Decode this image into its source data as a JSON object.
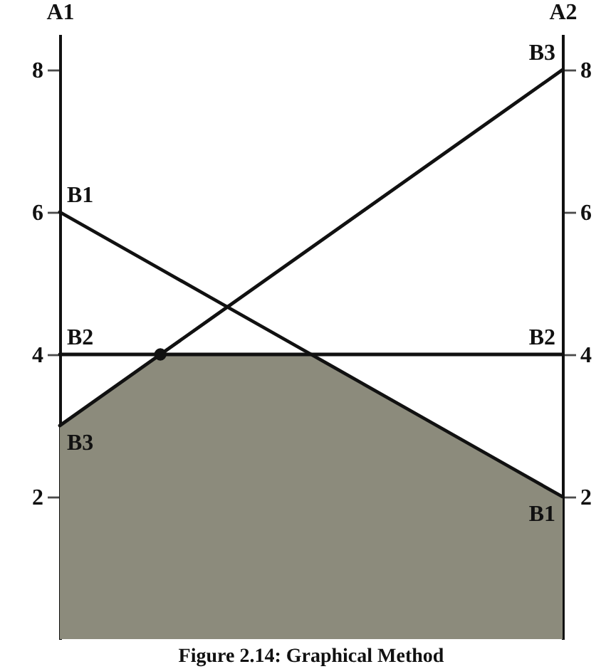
{
  "chart_data": {
    "type": "line",
    "title": "Figure 2.14: Graphical Method",
    "ylabel": "A1",
    "y2label": "A2",
    "ylim": [
      0,
      8.5
    ],
    "yticks": [
      2,
      4,
      6,
      8
    ],
    "y2lim": [
      0,
      8.5
    ],
    "y2ticks": [
      2,
      4,
      6,
      8
    ],
    "tick_labels": "y",
    "categories": [
      null,
      null,
      null,
      null,
      null,
      null,
      null,
      null,
      null,
      null,
      null
    ],
    "series": [
      {
        "type": "area",
        "color": "#8c8b7c",
        "values": [
          3,
          3.5,
          4,
          4,
          4,
          4,
          3.6,
          3.2,
          2.8,
          2.4,
          2
        ]
      },
      {
        "name": "B1",
        "color": "#111111",
        "values": [
          6,
          5.6,
          5.2,
          4.8,
          4.4,
          4,
          3.6,
          3.2,
          2.8,
          2.4,
          2
        ]
      },
      {
        "name": "B2",
        "color": "#111111",
        "values": [
          4,
          4,
          4,
          4,
          4,
          4,
          4,
          4,
          4,
          4,
          4
        ]
      },
      {
        "name": "B3",
        "color": "#111111",
        "values": [
          3,
          3.5,
          4,
          4.5,
          5,
          5.5,
          6,
          6.5,
          7,
          7.5,
          8
        ]
      },
      {
        "type": "scatter",
        "color": "#111111",
        "values": [
          null,
          null,
          4,
          null,
          null,
          null,
          null,
          null,
          null,
          null,
          null
        ],
        "marker": "circle"
      }
    ]
  }
}
